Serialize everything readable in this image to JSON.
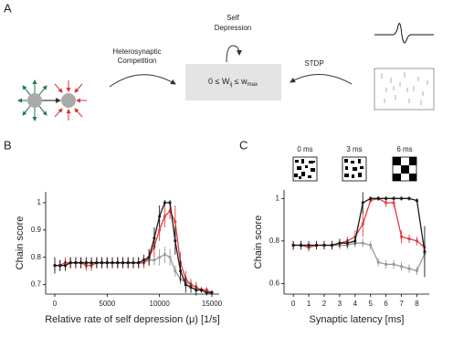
{
  "panels": [
    "A",
    "B",
    "C"
  ],
  "diagram": {
    "competition": [
      "Heterosynaptic",
      "Competition"
    ],
    "self_depression": [
      "Self",
      "Depression"
    ],
    "stdp": "STDP",
    "formula": [
      "0 ≤ W",
      "ij",
      " ≤ w",
      "max"
    ]
  },
  "chart_data": [
    {
      "type": "line",
      "xlabel": "Relative rate of self depression (μ) [1/s]",
      "ylabel": "Chain score",
      "x": [
        0,
        500,
        1000,
        1500,
        2000,
        2500,
        3000,
        3500,
        4000,
        4500,
        5000,
        5500,
        6000,
        6500,
        7000,
        7500,
        8000,
        8500,
        9000,
        9500,
        10000,
        10500,
        11000,
        11500,
        12000,
        12500,
        13000,
        13500,
        14000,
        14500,
        15000
      ],
      "series": [
        {
          "color": "#9a9a9a",
          "values": [
            0.77,
            0.77,
            0.77,
            0.78,
            0.78,
            0.78,
            0.78,
            0.78,
            0.78,
            0.78,
            0.78,
            0.78,
            0.78,
            0.78,
            0.78,
            0.78,
            0.78,
            0.78,
            0.79,
            0.79,
            0.8,
            0.81,
            0.8,
            0.75,
            0.72,
            0.71,
            0.7,
            0.69,
            0.68,
            0.68,
            0.67
          ],
          "errors": [
            0.02,
            0.02,
            0.02,
            0.02,
            0.02,
            0.02,
            0.02,
            0.02,
            0.02,
            0.02,
            0.02,
            0.02,
            0.02,
            0.02,
            0.02,
            0.02,
            0.02,
            0.02,
            0.02,
            0.02,
            0.03,
            0.03,
            0.03,
            0.02,
            0.02,
            0.02,
            0.02,
            0.01,
            0.01,
            0.01,
            0.01
          ]
        },
        {
          "color": "#e8383d",
          "values": [
            0.77,
            0.77,
            0.78,
            0.78,
            0.78,
            0.78,
            0.77,
            0.77,
            0.78,
            0.78,
            0.78,
            0.78,
            0.78,
            0.78,
            0.78,
            0.78,
            0.78,
            0.78,
            0.8,
            0.84,
            0.9,
            0.95,
            0.97,
            0.93,
            0.78,
            0.72,
            0.7,
            0.69,
            0.68,
            0.68,
            0.67
          ],
          "errors": [
            0.02,
            0.02,
            0.02,
            0.02,
            0.02,
            0.02,
            0.02,
            0.02,
            0.02,
            0.02,
            0.02,
            0.02,
            0.02,
            0.02,
            0.02,
            0.02,
            0.02,
            0.02,
            0.03,
            0.04,
            0.04,
            0.04,
            0.03,
            0.06,
            0.04,
            0.03,
            0.02,
            0.02,
            0.01,
            0.01,
            0.01
          ]
        },
        {
          "color": "#1a1a1a",
          "values": [
            0.77,
            0.77,
            0.77,
            0.78,
            0.78,
            0.78,
            0.78,
            0.78,
            0.78,
            0.78,
            0.78,
            0.78,
            0.78,
            0.78,
            0.78,
            0.78,
            0.78,
            0.79,
            0.8,
            0.87,
            0.95,
            1.0,
            1.0,
            0.86,
            0.75,
            0.7,
            0.69,
            0.68,
            0.68,
            0.67,
            0.67
          ],
          "errors": [
            0.03,
            0.02,
            0.02,
            0.02,
            0.02,
            0.02,
            0.02,
            0.02,
            0.02,
            0.02,
            0.02,
            0.02,
            0.02,
            0.02,
            0.02,
            0.02,
            0.02,
            0.02,
            0.03,
            0.04,
            0.04,
            0.01,
            0.01,
            0.05,
            0.04,
            0.03,
            0.02,
            0.02,
            0.01,
            0.01,
            0.01
          ]
        }
      ],
      "xlim": [
        -870,
        15700
      ],
      "ylim": [
        0.665,
        1.04
      ],
      "xticks": [
        0,
        5000,
        10000,
        15000
      ],
      "yticks": [
        0.7,
        0.8,
        0.9,
        1
      ]
    },
    {
      "type": "line",
      "xlabel": "Synaptic latency [ms]",
      "ylabel": "Chain score",
      "insets": [
        "0 ms",
        "3 ms",
        "6 ms"
      ],
      "x": [
        0,
        0.5,
        1,
        1.5,
        2,
        2.5,
        3,
        3.5,
        4,
        4.5,
        5,
        5.5,
        6,
        6.5,
        7,
        7.5,
        8,
        8.5
      ],
      "series": [
        {
          "color": "#9a9a9a",
          "values": [
            0.78,
            0.78,
            0.78,
            0.78,
            0.78,
            0.78,
            0.78,
            0.78,
            0.79,
            0.79,
            0.78,
            0.7,
            0.69,
            0.69,
            0.68,
            0.67,
            0.66,
            0.74
          ],
          "errors": [
            0.02,
            0.02,
            0.02,
            0.02,
            0.02,
            0.02,
            0.02,
            0.02,
            0.02,
            0.02,
            0.02,
            0.02,
            0.02,
            0.02,
            0.02,
            0.02,
            0.02,
            0.04
          ]
        },
        {
          "color": "#e8383d",
          "values": [
            0.78,
            0.78,
            0.77,
            0.78,
            0.78,
            0.78,
            0.79,
            0.8,
            0.82,
            0.88,
            0.99,
            1.0,
            0.98,
            0.98,
            0.82,
            0.81,
            0.8,
            0.77
          ],
          "errors": [
            0.02,
            0.02,
            0.02,
            0.02,
            0.02,
            0.02,
            0.02,
            0.02,
            0.03,
            0.06,
            0.01,
            0.01,
            0.02,
            0.02,
            0.03,
            0.02,
            0.02,
            0.03
          ]
        },
        {
          "color": "#1a1a1a",
          "values": [
            0.78,
            0.78,
            0.78,
            0.78,
            0.78,
            0.78,
            0.79,
            0.79,
            0.8,
            0.98,
            1.0,
            1.0,
            1.0,
            1.0,
            1.0,
            1.0,
            0.99,
            0.75
          ],
          "errors": [
            0.02,
            0.02,
            0.02,
            0.02,
            0.02,
            0.02,
            0.02,
            0.02,
            0.02,
            0.05,
            0.01,
            0.01,
            0.01,
            0.01,
            0.01,
            0.01,
            0.01,
            0.12
          ]
        }
      ],
      "xlim": [
        -0.6,
        8.8
      ],
      "ylim": [
        0.55,
        1.04
      ],
      "xticks": [
        0,
        1,
        2,
        3,
        4,
        5,
        6,
        7,
        8
      ],
      "yticks": [
        0.6,
        0.8,
        1
      ]
    }
  ]
}
